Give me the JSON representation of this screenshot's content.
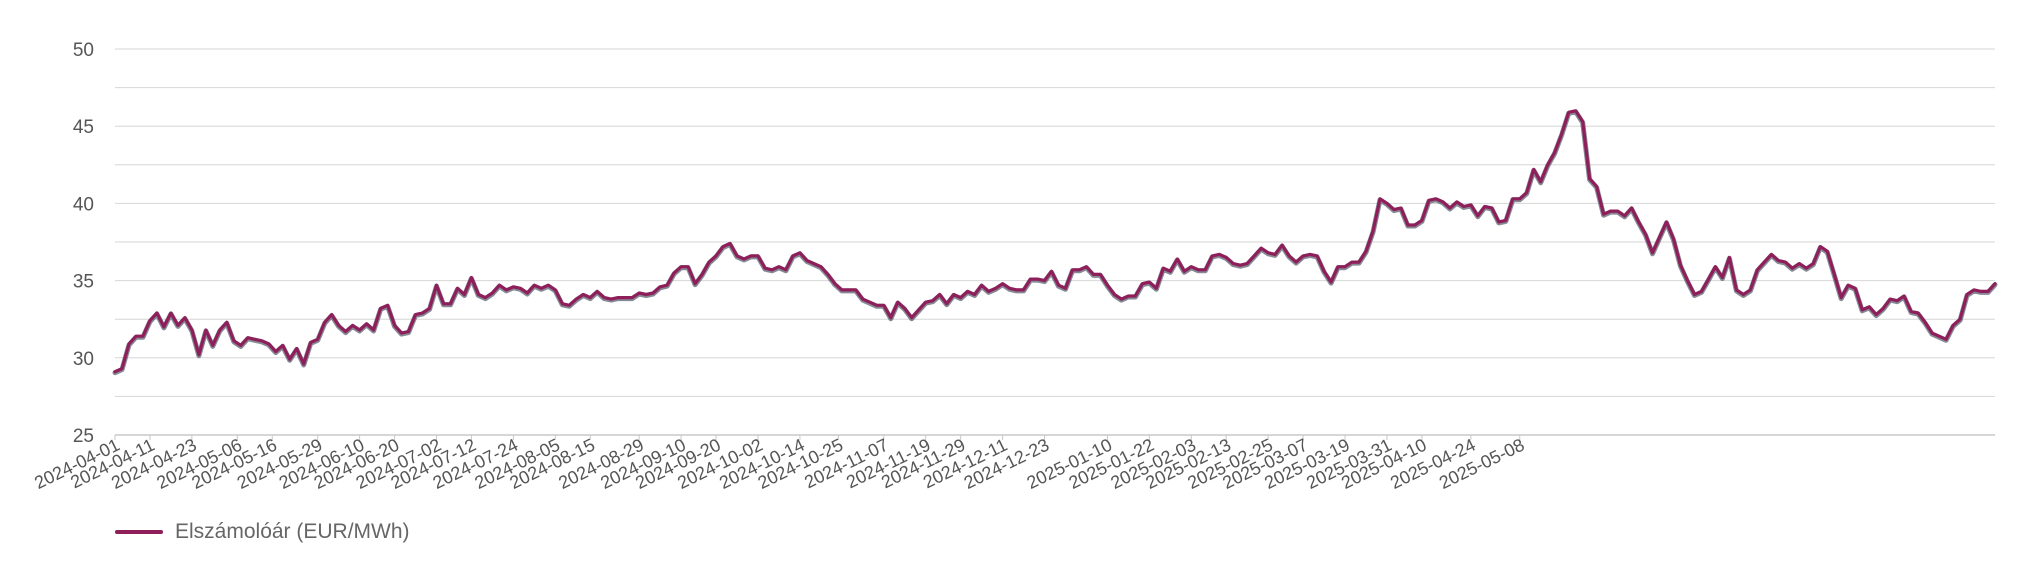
{
  "chart_data": {
    "type": "line",
    "x_type": "date",
    "ylim": [
      25,
      50
    ],
    "yticks": [
      25,
      30,
      35,
      40,
      45,
      50
    ],
    "xtick_labels": [
      "2024-04-01",
      "2024-04-11",
      "2024-04-23",
      "2024-05-06",
      "2024-05-16",
      "2024-05-29",
      "2024-06-10",
      "2024-06-20",
      "2024-07-02",
      "2024-07-12",
      "2024-07-24",
      "2024-08-05",
      "2024-08-15",
      "2024-08-29",
      "2024-09-10",
      "2024-09-20",
      "2024-10-02",
      "2024-10-14",
      "2024-10-25",
      "2024-11-07",
      "2024-11-19",
      "2024-11-29",
      "2024-12-11",
      "2024-12-23",
      "2025-01-10",
      "2025-01-22",
      "2025-02-03",
      "2025-02-13",
      "2025-02-25",
      "2025-03-07",
      "2025-03-19",
      "2025-03-31",
      "2025-04-10",
      "2025-04-24",
      "2025-05-08"
    ],
    "grid": true,
    "legend_position": "bottom-left",
    "series": [
      {
        "name": "Elszámolóár (EUR/MWh)",
        "color": "#8e1f5a",
        "points": [
          [
            "2024-04-01",
            29.1
          ],
          [
            "2024-04-03",
            29.3
          ],
          [
            "2024-04-05",
            30.9
          ],
          [
            "2024-04-07",
            31.4
          ],
          [
            "2024-04-09",
            31.4
          ],
          [
            "2024-04-11",
            32.4
          ],
          [
            "2024-04-13",
            32.9
          ],
          [
            "2024-04-15",
            32.0
          ],
          [
            "2024-04-17",
            32.9
          ],
          [
            "2024-04-19",
            32.1
          ],
          [
            "2024-04-21",
            32.6
          ],
          [
            "2024-04-23",
            31.8
          ],
          [
            "2024-04-25",
            30.2
          ],
          [
            "2024-04-27",
            31.8
          ],
          [
            "2024-04-29",
            30.8
          ],
          [
            "2024-05-01",
            31.8
          ],
          [
            "2024-05-03",
            32.3
          ],
          [
            "2024-05-05",
            31.1
          ],
          [
            "2024-05-07",
            30.8
          ],
          [
            "2024-05-09",
            31.3
          ],
          [
            "2024-05-11",
            31.2
          ],
          [
            "2024-05-13",
            31.1
          ],
          [
            "2024-05-15",
            30.9
          ],
          [
            "2024-05-17",
            30.4
          ],
          [
            "2024-05-19",
            30.8
          ],
          [
            "2024-05-21",
            29.9
          ],
          [
            "2024-05-23",
            30.6
          ],
          [
            "2024-05-25",
            29.6
          ],
          [
            "2024-05-27",
            31.0
          ],
          [
            "2024-05-29",
            31.2
          ],
          [
            "2024-05-31",
            32.3
          ],
          [
            "2024-06-02",
            32.8
          ],
          [
            "2024-06-04",
            32.1
          ],
          [
            "2024-06-06",
            31.7
          ],
          [
            "2024-06-08",
            32.1
          ],
          [
            "2024-06-10",
            31.8
          ],
          [
            "2024-06-12",
            32.2
          ],
          [
            "2024-06-14",
            31.8
          ],
          [
            "2024-06-16",
            33.2
          ],
          [
            "2024-06-18",
            33.4
          ],
          [
            "2024-06-20",
            32.1
          ],
          [
            "2024-06-22",
            31.6
          ],
          [
            "2024-06-24",
            31.7
          ],
          [
            "2024-06-26",
            32.8
          ],
          [
            "2024-06-28",
            32.9
          ],
          [
            "2024-06-30",
            33.2
          ],
          [
            "2024-07-02",
            34.7
          ],
          [
            "2024-07-04",
            33.5
          ],
          [
            "2024-07-06",
            33.5
          ],
          [
            "2024-07-08",
            34.5
          ],
          [
            "2024-07-10",
            34.1
          ],
          [
            "2024-07-12",
            35.2
          ],
          [
            "2024-07-14",
            34.1
          ],
          [
            "2024-07-16",
            33.9
          ],
          [
            "2024-07-18",
            34.2
          ],
          [
            "2024-07-20",
            34.7
          ],
          [
            "2024-07-22",
            34.4
          ],
          [
            "2024-07-24",
            34.6
          ],
          [
            "2024-07-26",
            34.5
          ],
          [
            "2024-07-28",
            34.2
          ],
          [
            "2024-07-30",
            34.7
          ],
          [
            "2024-08-01",
            34.5
          ],
          [
            "2024-08-03",
            34.7
          ],
          [
            "2024-08-05",
            34.4
          ],
          [
            "2024-08-07",
            33.5
          ],
          [
            "2024-08-09",
            33.4
          ],
          [
            "2024-08-11",
            33.8
          ],
          [
            "2024-08-13",
            34.1
          ],
          [
            "2024-08-15",
            33.9
          ],
          [
            "2024-08-17",
            34.3
          ],
          [
            "2024-08-19",
            33.9
          ],
          [
            "2024-08-21",
            33.8
          ],
          [
            "2024-08-23",
            33.9
          ],
          [
            "2024-08-25",
            33.9
          ],
          [
            "2024-08-27",
            33.9
          ],
          [
            "2024-08-29",
            34.2
          ],
          [
            "2024-08-31",
            34.1
          ],
          [
            "2024-09-02",
            34.2
          ],
          [
            "2024-09-04",
            34.6
          ],
          [
            "2024-09-06",
            34.7
          ],
          [
            "2024-09-08",
            35.5
          ],
          [
            "2024-09-10",
            35.9
          ],
          [
            "2024-09-12",
            35.9
          ],
          [
            "2024-09-14",
            34.8
          ],
          [
            "2024-09-16",
            35.4
          ],
          [
            "2024-09-18",
            36.2
          ],
          [
            "2024-09-20",
            36.6
          ],
          [
            "2024-09-22",
            37.2
          ],
          [
            "2024-09-24",
            37.4
          ],
          [
            "2024-09-26",
            36.6
          ],
          [
            "2024-09-28",
            36.4
          ],
          [
            "2024-09-30",
            36.6
          ],
          [
            "2024-10-02",
            36.6
          ],
          [
            "2024-10-04",
            35.8
          ],
          [
            "2024-10-06",
            35.7
          ],
          [
            "2024-10-08",
            35.9
          ],
          [
            "2024-10-10",
            35.7
          ],
          [
            "2024-10-12",
            36.6
          ],
          [
            "2024-10-14",
            36.8
          ],
          [
            "2024-10-16",
            36.3
          ],
          [
            "2024-10-18",
            36.1
          ],
          [
            "2024-10-20",
            35.9
          ],
          [
            "2024-10-22",
            35.4
          ],
          [
            "2024-10-24",
            34.8
          ],
          [
            "2024-10-26",
            34.4
          ],
          [
            "2024-10-28",
            34.4
          ],
          [
            "2024-10-30",
            34.4
          ],
          [
            "2024-11-01",
            33.8
          ],
          [
            "2024-11-03",
            33.6
          ],
          [
            "2024-11-05",
            33.4
          ],
          [
            "2024-11-07",
            33.4
          ],
          [
            "2024-11-09",
            32.6
          ],
          [
            "2024-11-11",
            33.6
          ],
          [
            "2024-11-13",
            33.2
          ],
          [
            "2024-11-15",
            32.6
          ],
          [
            "2024-11-17",
            33.1
          ],
          [
            "2024-11-19",
            33.6
          ],
          [
            "2024-11-21",
            33.7
          ],
          [
            "2024-11-23",
            34.1
          ],
          [
            "2024-11-25",
            33.5
          ],
          [
            "2024-11-27",
            34.1
          ],
          [
            "2024-11-29",
            33.9
          ],
          [
            "2024-12-01",
            34.3
          ],
          [
            "2024-12-03",
            34.1
          ],
          [
            "2024-12-05",
            34.7
          ],
          [
            "2024-12-07",
            34.3
          ],
          [
            "2024-12-09",
            34.5
          ],
          [
            "2024-12-11",
            34.8
          ],
          [
            "2024-12-13",
            34.5
          ],
          [
            "2024-12-15",
            34.4
          ],
          [
            "2024-12-17",
            34.4
          ],
          [
            "2024-12-19",
            35.1
          ],
          [
            "2024-12-21",
            35.1
          ],
          [
            "2024-12-23",
            35.0
          ],
          [
            "2024-12-25",
            35.6
          ],
          [
            "2024-12-27",
            34.7
          ],
          [
            "2024-12-29",
            34.5
          ],
          [
            "2024-12-31",
            35.7
          ],
          [
            "2025-01-02",
            35.7
          ],
          [
            "2025-01-04",
            35.9
          ],
          [
            "2025-01-06",
            35.4
          ],
          [
            "2025-01-08",
            35.4
          ],
          [
            "2025-01-10",
            34.7
          ],
          [
            "2025-01-12",
            34.1
          ],
          [
            "2025-01-14",
            33.8
          ],
          [
            "2025-01-16",
            34.0
          ],
          [
            "2025-01-18",
            34.0
          ],
          [
            "2025-01-20",
            34.8
          ],
          [
            "2025-01-22",
            34.9
          ],
          [
            "2025-01-24",
            34.5
          ],
          [
            "2025-01-26",
            35.8
          ],
          [
            "2025-01-28",
            35.6
          ],
          [
            "2025-01-30",
            36.4
          ],
          [
            "2025-02-01",
            35.6
          ],
          [
            "2025-02-03",
            35.9
          ],
          [
            "2025-02-05",
            35.7
          ],
          [
            "2025-02-07",
            35.7
          ],
          [
            "2025-02-09",
            36.6
          ],
          [
            "2025-02-11",
            36.7
          ],
          [
            "2025-02-13",
            36.5
          ],
          [
            "2025-02-15",
            36.1
          ],
          [
            "2025-02-17",
            36.0
          ],
          [
            "2025-02-19",
            36.1
          ],
          [
            "2025-02-21",
            36.6
          ],
          [
            "2025-02-23",
            37.1
          ],
          [
            "2025-02-25",
            36.8
          ],
          [
            "2025-02-27",
            36.7
          ],
          [
            "2025-03-01",
            37.3
          ],
          [
            "2025-03-03",
            36.6
          ],
          [
            "2025-03-05",
            36.2
          ],
          [
            "2025-03-07",
            36.6
          ],
          [
            "2025-03-09",
            36.7
          ],
          [
            "2025-03-11",
            36.6
          ],
          [
            "2025-03-13",
            35.6
          ],
          [
            "2025-03-15",
            34.9
          ],
          [
            "2025-03-17",
            35.9
          ],
          [
            "2025-03-19",
            35.9
          ],
          [
            "2025-03-21",
            36.2
          ],
          [
            "2025-03-23",
            36.2
          ],
          [
            "2025-03-25",
            36.9
          ],
          [
            "2025-03-27",
            38.2
          ],
          [
            "2025-03-29",
            40.3
          ],
          [
            "2025-03-31",
            40.0
          ],
          [
            "2025-04-02",
            39.6
          ],
          [
            "2025-04-04",
            39.7
          ],
          [
            "2025-04-06",
            38.6
          ],
          [
            "2025-04-08",
            38.6
          ],
          [
            "2025-04-10",
            38.9
          ],
          [
            "2025-04-12",
            40.2
          ],
          [
            "2025-04-14",
            40.3
          ],
          [
            "2025-04-16",
            40.1
          ],
          [
            "2025-04-18",
            39.7
          ],
          [
            "2025-04-20",
            40.1
          ],
          [
            "2025-04-22",
            39.8
          ],
          [
            "2025-04-24",
            39.9
          ],
          [
            "2025-04-26",
            39.2
          ],
          [
            "2025-04-28",
            39.8
          ],
          [
            "2025-04-30",
            39.7
          ],
          [
            "2025-05-02",
            38.8
          ],
          [
            "2025-05-04",
            38.9
          ],
          [
            "2025-05-06",
            40.3
          ],
          [
            "2025-05-08",
            40.3
          ],
          [
            "2025-05-10",
            40.7
          ],
          [
            "2025-05-12",
            42.2
          ],
          [
            "2025-05-14",
            41.4
          ],
          [
            "2025-05-16",
            42.5
          ],
          [
            "2025-05-18",
            43.3
          ],
          [
            "2025-05-20",
            44.5
          ],
          [
            "2025-05-22",
            45.9
          ],
          [
            "2025-05-24",
            46.0
          ],
          [
            "2025-05-26",
            45.3
          ],
          [
            "2025-05-28",
            41.6
          ],
          [
            "2025-05-30",
            41.1
          ],
          [
            "2025-06-01",
            39.3
          ],
          [
            "2025-06-03",
            39.5
          ],
          [
            "2025-06-05",
            39.5
          ],
          [
            "2025-06-07",
            39.2
          ],
          [
            "2025-06-09",
            39.7
          ],
          [
            "2025-06-11",
            38.8
          ],
          [
            "2025-06-13",
            38.0
          ],
          [
            "2025-06-15",
            36.8
          ],
          [
            "2025-06-17",
            37.8
          ],
          [
            "2025-06-19",
            38.8
          ],
          [
            "2025-06-21",
            37.7
          ],
          [
            "2025-06-23",
            36.0
          ],
          [
            "2025-06-25",
            35.0
          ],
          [
            "2025-06-27",
            34.1
          ],
          [
            "2025-06-29",
            34.3
          ],
          [
            "2025-07-01",
            35.1
          ],
          [
            "2025-07-03",
            35.9
          ],
          [
            "2025-07-05",
            35.2
          ],
          [
            "2025-07-07",
            36.5
          ],
          [
            "2025-07-09",
            34.4
          ],
          [
            "2025-07-11",
            34.1
          ],
          [
            "2025-07-13",
            34.4
          ],
          [
            "2025-07-15",
            35.7
          ],
          [
            "2025-07-17",
            36.2
          ],
          [
            "2025-07-19",
            36.7
          ],
          [
            "2025-07-21",
            36.3
          ],
          [
            "2025-07-23",
            36.2
          ],
          [
            "2025-07-25",
            35.8
          ],
          [
            "2025-07-27",
            36.1
          ],
          [
            "2025-07-29",
            35.8
          ],
          [
            "2025-07-31",
            36.1
          ],
          [
            "2025-08-02",
            37.2
          ],
          [
            "2025-08-04",
            36.9
          ],
          [
            "2025-08-06",
            35.4
          ],
          [
            "2025-08-08",
            33.9
          ],
          [
            "2025-08-10",
            34.7
          ],
          [
            "2025-08-12",
            34.5
          ],
          [
            "2025-08-14",
            33.1
          ],
          [
            "2025-08-16",
            33.3
          ],
          [
            "2025-08-18",
            32.8
          ],
          [
            "2025-08-20",
            33.2
          ],
          [
            "2025-08-22",
            33.8
          ],
          [
            "2025-08-24",
            33.7
          ],
          [
            "2025-08-26",
            34.0
          ],
          [
            "2025-08-28",
            33.0
          ],
          [
            "2025-08-30",
            32.9
          ],
          [
            "2025-09-01",
            32.3
          ],
          [
            "2025-09-03",
            31.6
          ],
          [
            "2025-09-05",
            31.4
          ],
          [
            "2025-09-07",
            31.2
          ],
          [
            "2025-09-09",
            32.1
          ],
          [
            "2025-09-11",
            32.5
          ],
          [
            "2025-09-13",
            34.1
          ],
          [
            "2025-09-15",
            34.4
          ],
          [
            "2025-09-17",
            34.3
          ],
          [
            "2025-09-19",
            34.3
          ],
          [
            "2025-09-21",
            34.8
          ]
        ]
      }
    ]
  },
  "legend": {
    "label": "Elszámolóár (EUR/MWh)",
    "color": "#8e1f5a"
  },
  "colors": {
    "line": "#8e1f5a",
    "line_shadow": "#5c6370",
    "grid": "#d6d6d6",
    "baseline": "#c8c8c8",
    "tick_text": "#555555"
  }
}
